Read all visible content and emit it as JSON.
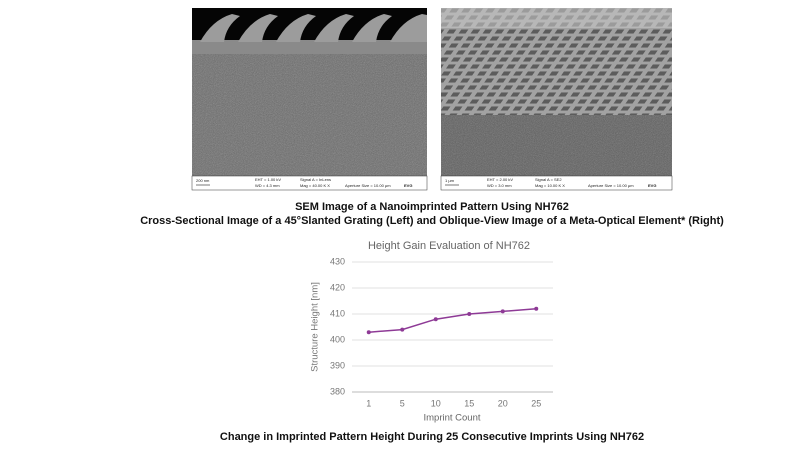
{
  "figure": {
    "images": [
      {
        "scale": "200 nm",
        "eht": "EHT = 1.00 kV",
        "wd": "WD = 4.3 mm",
        "signal": "Signal A = InLens",
        "mag": "Mag = 40.00 K X",
        "aperture": "Aperture Size = 10.00 µm",
        "logo": "EVG"
      },
      {
        "scale": "1 µm",
        "eht": "EHT = 2.00 kV",
        "wd": "WD = 3.0 mm",
        "signal": "Signal A = SE2",
        "mag": "Mag = 10.00 K X",
        "aperture": "Aperture Size = 10.00 µm",
        "logo": "EVG"
      }
    ],
    "caption_title": "SEM Image of a Nanoimprinted Pattern Using NH762",
    "caption_subtitle": "Cross-Sectional Image of a 45°Slanted Grating (Left) and Oblique-View Image of a Meta-Optical Element* (Right)"
  },
  "chart_data": {
    "type": "line",
    "title": "Height Gain Evaluation of NH762",
    "x_label": "Imprint Count",
    "y_label": "Structure Height [nm]",
    "categories": [
      "1",
      "5",
      "10",
      "15",
      "20",
      "25"
    ],
    "values": [
      403,
      404,
      408,
      410,
      411,
      412
    ],
    "color": "#8e3a96",
    "ylim": [
      380,
      430
    ],
    "yticks": [
      380,
      390,
      400,
      410,
      420,
      430
    ],
    "grid": true
  },
  "chart_caption": "Change in Imprinted Pattern Height During 25 Consecutive Imprints Using NH762"
}
